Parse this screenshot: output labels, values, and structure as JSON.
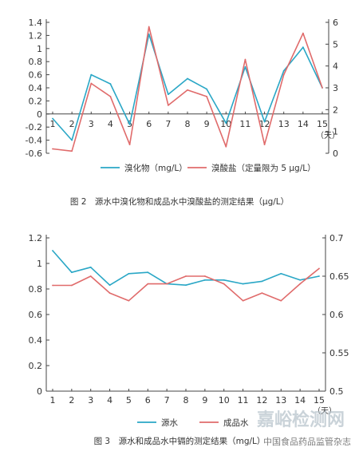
{
  "chart_data": [
    {
      "type": "line",
      "caption": "图 2　源水中溴化物和成品水中溴酸盐的测定结果（μg/L）",
      "x": [
        1,
        2,
        3,
        4,
        5,
        6,
        7,
        8,
        9,
        10,
        11,
        12,
        13,
        14,
        15
      ],
      "x_unit": "（天）",
      "y_ticks": [
        "1.4",
        "1.2",
        "1",
        "0.8",
        "0.6",
        "0.4",
        "0.2",
        "0",
        "-0.2",
        "-0.4",
        "-0.6"
      ],
      "y_range": [
        -0.6,
        1.4
      ],
      "y2_ticks": [
        "6",
        "5",
        "4",
        "3",
        "2",
        "1",
        "0"
      ],
      "y2_range": [
        0,
        6
      ],
      "legend_position": "bottom",
      "series": [
        {
          "name": "溴化物（mg/L）",
          "axis": "left",
          "color": "#2aa7c6",
          "values": [
            -0.07,
            -0.4,
            0.6,
            0.46,
            -0.16,
            1.22,
            0.3,
            0.54,
            0.38,
            -0.14,
            0.72,
            -0.12,
            0.66,
            1.02,
            0.4
          ]
        },
        {
          "name": "溴酸盐（定量限为 5 μg/L）",
          "axis": "right",
          "color": "#e06b6b",
          "values": [
            0.2,
            0.1,
            3.2,
            2.6,
            0.4,
            5.8,
            2.2,
            2.9,
            2.6,
            0.3,
            4.3,
            0.4,
            3.6,
            5.5,
            3.0
          ]
        }
      ]
    },
    {
      "type": "line",
      "caption": "图 3　源水和成品水中镉的测定结果（mg/L）",
      "x": [
        1,
        2,
        3,
        4,
        5,
        6,
        7,
        8,
        9,
        10,
        11,
        12,
        13,
        14,
        15
      ],
      "x_unit": "（天）",
      "y_ticks": [
        "1.2",
        "1",
        "0.8",
        "0.6",
        "0.4",
        "0.2",
        "0"
      ],
      "y_range": [
        0,
        1.2
      ],
      "y2_ticks": [
        "0.7",
        "0.65",
        "0.6",
        "0.55",
        "0.5"
      ],
      "y2_range": [
        0.5,
        0.7
      ],
      "legend_position": "bottom",
      "series": [
        {
          "name": "源水",
          "axis": "left",
          "color": "#2aa7c6",
          "values": [
            1.1,
            0.93,
            0.97,
            0.83,
            0.92,
            0.93,
            0.84,
            0.83,
            0.87,
            0.87,
            0.84,
            0.86,
            0.92,
            0.87,
            0.9
          ]
        },
        {
          "name": "成品水",
          "axis": "right",
          "color": "#e06b6b",
          "values": [
            0.638,
            0.638,
            0.65,
            0.628,
            0.618,
            0.64,
            0.64,
            0.65,
            0.65,
            0.64,
            0.618,
            0.628,
            0.618,
            0.64,
            0.66
          ]
        }
      ]
    }
  ],
  "watermark": {
    "brand": "嘉峪检测网",
    "account": "中国食品药品监管杂志"
  }
}
